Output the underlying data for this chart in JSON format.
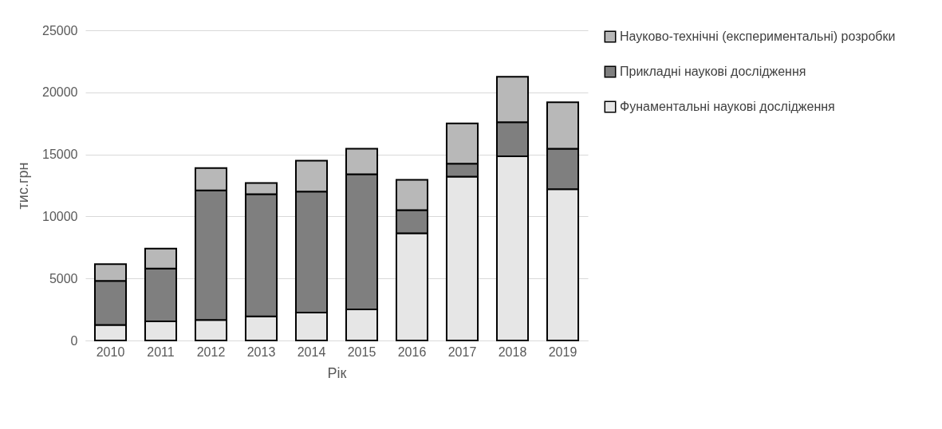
{
  "chart_data": {
    "type": "bar",
    "stacked": true,
    "xlabel": "Рік",
    "ylabel": "тис.грн",
    "categories": [
      "2010",
      "2011",
      "2012",
      "2013",
      "2014",
      "2015",
      "2016",
      "2017",
      "2018",
      "2019"
    ],
    "series": [
      {
        "name": "Фунаментальні наукові дослідження",
        "color": "#e6e6e6",
        "values": [
          1250,
          1550,
          1650,
          1950,
          2250,
          2500,
          8650,
          13200,
          14850,
          12200
        ]
      },
      {
        "name": "Прикладні наукові дослідження",
        "color": "#7f7f7f",
        "values": [
          3550,
          4250,
          10450,
          9850,
          9750,
          10900,
          1850,
          1050,
          2750,
          3250
        ]
      },
      {
        "name": "Науково-технічні (експериментальні) розробки",
        "color": "#b8b8b8",
        "values": [
          1350,
          1600,
          1800,
          900,
          2500,
          2050,
          2450,
          3250,
          3650,
          3750
        ]
      }
    ],
    "ylim": [
      0,
      25000
    ],
    "yticks": [
      0,
      5000,
      10000,
      15000,
      20000,
      25000
    ],
    "grid": "y",
    "legend": "right"
  }
}
